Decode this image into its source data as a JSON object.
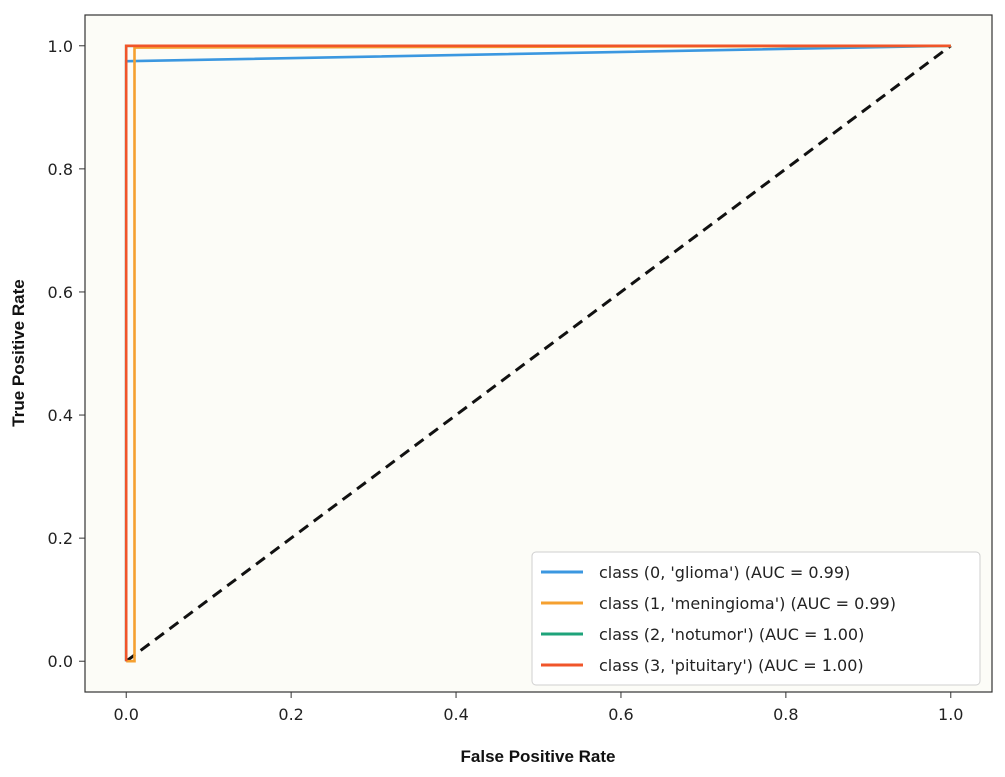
{
  "chart_data": {
    "type": "line",
    "xlabel": "False Positive Rate",
    "ylabel": "True Positive Rate",
    "xlim": [
      -0.05,
      1.05
    ],
    "ylim": [
      -0.05,
      1.05
    ],
    "xticks": [
      "0.0",
      "0.2",
      "0.4",
      "0.6",
      "0.8",
      "1.0"
    ],
    "yticks": [
      "0.0",
      "0.2",
      "0.4",
      "0.6",
      "0.8",
      "1.0"
    ],
    "grid": false,
    "legend_position": "lower-right",
    "series": [
      {
        "name": "class (0, 'glioma') (AUC = 0.99)",
        "color": "#3b97e0",
        "x": [
          0.0,
          0.0,
          1.0
        ],
        "y": [
          0.0,
          0.975,
          1.0
        ]
      },
      {
        "name": "class (1, 'meningioma') (AUC = 0.99)",
        "color": "#f5a030",
        "x": [
          0.0,
          0.01,
          0.01,
          1.0
        ],
        "y": [
          0.0,
          0.0,
          0.997,
          1.0
        ]
      },
      {
        "name": "class (2, 'notumor') (AUC = 1.00)",
        "color": "#1ea37a",
        "x": [
          0.0,
          0.0,
          1.0
        ],
        "y": [
          0.0,
          1.0,
          1.0
        ]
      },
      {
        "name": "class (3, 'pituitary') (AUC = 1.00)",
        "color": "#f0552a",
        "x": [
          0.0,
          0.0,
          1.0
        ],
        "y": [
          0.0,
          1.0,
          1.0
        ]
      }
    ],
    "reference_line": {
      "x": [
        0,
        1
      ],
      "y": [
        0,
        1
      ],
      "color": "#111111",
      "style": "dashed"
    }
  }
}
